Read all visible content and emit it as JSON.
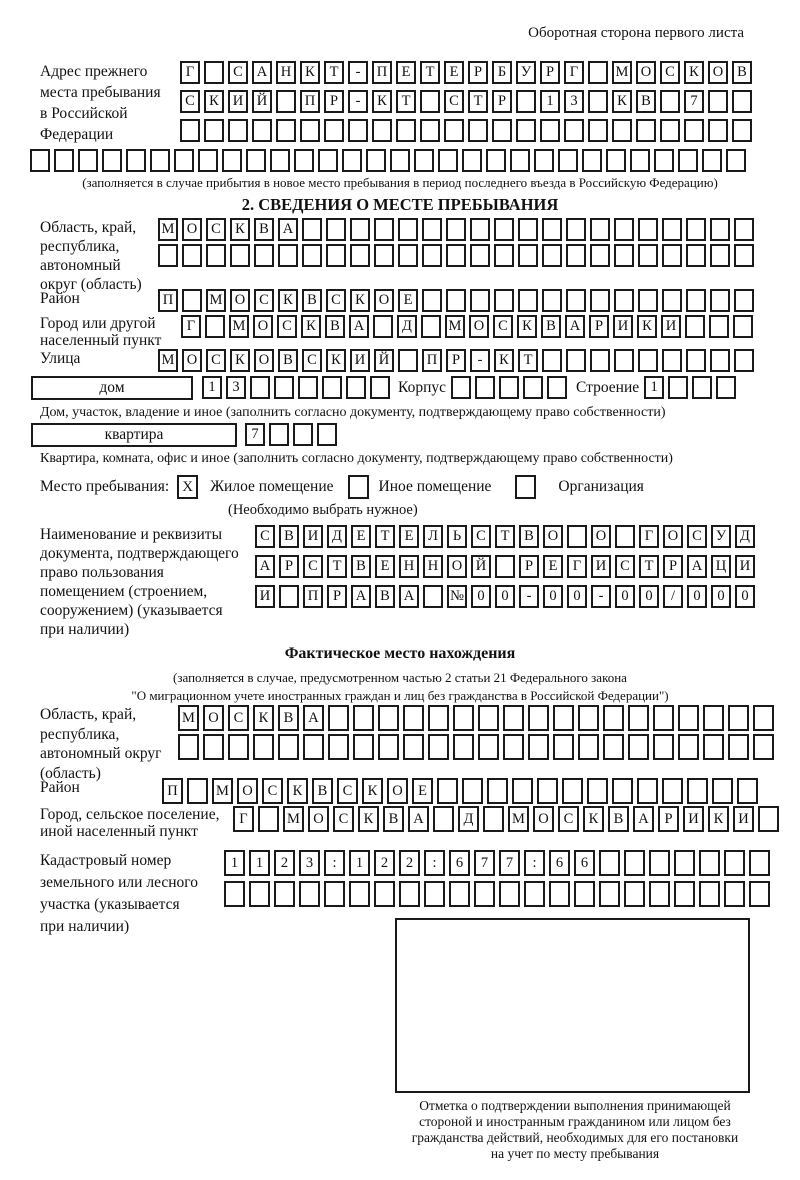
{
  "header_note": "Оборотная сторона первого листа",
  "prev_address": {
    "label_lines": [
      "Адрес прежнего",
      "места пребывания",
      "в Российской",
      "Федерации"
    ],
    "rows": [
      {
        "text": "Г САНКТ-ПЕТЕРБУРГ МОСКОВ",
        "len": 24
      },
      {
        "text": "СКИЙ ПР-КТ СТР 13 КВ 7",
        "len": 24
      },
      {
        "text": "",
        "len": 24
      }
    ],
    "overflow_row": {
      "text": "",
      "len": 30
    },
    "note": "(заполняется в случае прибытия в новое место пребывания в период последнего въезда в Российскую Федерацию)"
  },
  "section2": {
    "title": "2. СВЕДЕНИЯ О МЕСТЕ ПРЕБЫВАНИЯ",
    "region": {
      "label_lines": [
        "Область, край,",
        "республика,",
        "автономный",
        "округ (область)"
      ],
      "rows": [
        {
          "text": "МОСКВА",
          "len": 25
        },
        {
          "text": "",
          "len": 25
        }
      ]
    },
    "district": {
      "label": "Район",
      "row": {
        "text": "П МОСКВСКОЕ",
        "len": 25
      }
    },
    "city": {
      "label_lines": [
        "Город или другой",
        "населенный пункт"
      ],
      "row": {
        "text": "Г МОСКВА Д МОСКВАРИКИ",
        "len": 24
      }
    },
    "street": {
      "label": "Улица",
      "row": {
        "text": "МОСКОВСКИЙ ПР-КТ",
        "len": 25
      }
    },
    "house": {
      "box_label": "дом",
      "cells": {
        "text": "13",
        "len": 8
      },
      "korpus_label": "Корпус",
      "korpus_cells": {
        "text": "",
        "len": 5
      },
      "stroenie_label": "Строение",
      "stroenie_cells": {
        "text": "1",
        "len": 4
      },
      "note": "Дом, участок, владение и иное (заполнить согласно документу, подтверждающему право собственности)"
    },
    "apartment": {
      "box_label": "квартира",
      "cells": {
        "text": "7",
        "len": 4
      },
      "note": "Квартира, комната, офис и иное (заполнить согласно документу, подтверждающему право собственности)"
    },
    "stay_type": {
      "label": "Место пребывания:",
      "options": [
        {
          "label": "Жилое помещение",
          "mark": "X"
        },
        {
          "label": "Иное помещение",
          "mark": ""
        },
        {
          "label": "Организация",
          "mark": ""
        }
      ],
      "note": "(Необходимо выбрать нужное)"
    },
    "document": {
      "label_lines": [
        "Наименование и реквизиты",
        "документа, подтверждающего",
        "право пользования",
        "помещением (строением,",
        "сооружением) (указывается",
        "при наличии)"
      ],
      "rows": [
        {
          "text": "СВИДЕТЕЛЬСТВО О ГОСУД",
          "len": 21
        },
        {
          "text": "АРСТВЕННОЙ РЕГИСТРАЦИ",
          "len": 21
        },
        {
          "text": "И ПРАВА №00-00-00/000",
          "len": 21
        }
      ]
    }
  },
  "actual_location": {
    "title": "Фактическое место нахождения",
    "note_lines": [
      "(заполняется в случае, предусмотренном частью 2 статьи 21 Федерального закона",
      "\"О миграционном учете иностранных граждан и лиц без гражданства в Российской Федерации\")"
    ],
    "region": {
      "label_lines": [
        "Область, край,",
        "республика,",
        "автономный округ",
        "(область)"
      ],
      "rows": [
        {
          "text": "МОСКВА",
          "len": 24
        },
        {
          "text": "",
          "len": 24
        }
      ]
    },
    "district": {
      "label": "Район",
      "row": {
        "text": "П МОСКВСКОЕ",
        "len": 24
      }
    },
    "city": {
      "label_lines": [
        "Город, сельское поселение,",
        "иной населенный пункт"
      ],
      "row": {
        "text": "Г МОСКВА Д МОСКВАРИКИ",
        "len": 22
      }
    },
    "cadastral": {
      "label_lines": [
        "Кадастровый номер",
        "земельного или лесного",
        "участка (указывается",
        "при наличии)"
      ],
      "rows": [
        {
          "text": "1123:122:677:66",
          "len": 22
        },
        {
          "text": "",
          "len": 22
        }
      ]
    },
    "stamp_caption_lines": [
      "Отметка о подтверждении выполнения принимающей",
      "стороной и иностранным гражданином или лицом без",
      "гражданства действий, необходимых для его постановки",
      "на учет по месту пребывания"
    ]
  }
}
